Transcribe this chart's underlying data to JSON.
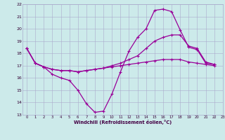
{
  "xlabel": "Windchill (Refroidissement éolien,°C)",
  "bg_color": "#cceaea",
  "grid_color": "#aaaacc",
  "line_color": "#990099",
  "line1_x": [
    0,
    1,
    2,
    3,
    4,
    5,
    6,
    7,
    8,
    9,
    10,
    11,
    12,
    13,
    14,
    15,
    16,
    17,
    18,
    19,
    20,
    21,
    22
  ],
  "line1_y": [
    18.4,
    17.2,
    16.9,
    16.3,
    16.0,
    15.8,
    15.0,
    13.9,
    13.2,
    13.3,
    14.7,
    16.5,
    18.2,
    19.3,
    20.0,
    21.5,
    21.6,
    21.4,
    19.9,
    18.5,
    18.3,
    17.2,
    17.1
  ],
  "line2_x": [
    0,
    1,
    2,
    3,
    4,
    5,
    6,
    7,
    8,
    9,
    10,
    11,
    12,
    13,
    14,
    15,
    16,
    17,
    18,
    19,
    20,
    21,
    22
  ],
  "line2_y": [
    18.4,
    17.2,
    16.9,
    16.7,
    16.6,
    16.6,
    16.5,
    16.6,
    16.7,
    16.8,
    17.0,
    17.2,
    17.5,
    17.8,
    18.4,
    19.0,
    19.3,
    19.5,
    19.5,
    18.6,
    18.4,
    17.3,
    17.1
  ],
  "line3_x": [
    0,
    1,
    2,
    3,
    4,
    5,
    6,
    7,
    8,
    9,
    10,
    11,
    12,
    13,
    14,
    15,
    16,
    17,
    18,
    19,
    20,
    21,
    22
  ],
  "line3_y": [
    18.4,
    17.2,
    16.9,
    16.7,
    16.6,
    16.6,
    16.5,
    16.6,
    16.7,
    16.8,
    16.9,
    17.0,
    17.1,
    17.2,
    17.3,
    17.4,
    17.5,
    17.5,
    17.5,
    17.3,
    17.2,
    17.1,
    17.0
  ],
  "ylim": [
    13,
    22
  ],
  "xlim": [
    -0.5,
    23
  ],
  "yticks": [
    13,
    14,
    15,
    16,
    17,
    18,
    19,
    20,
    21,
    22
  ],
  "xticks": [
    0,
    1,
    2,
    3,
    4,
    5,
    6,
    7,
    8,
    9,
    10,
    11,
    12,
    13,
    14,
    15,
    16,
    17,
    18,
    19,
    20,
    21,
    22,
    23
  ]
}
